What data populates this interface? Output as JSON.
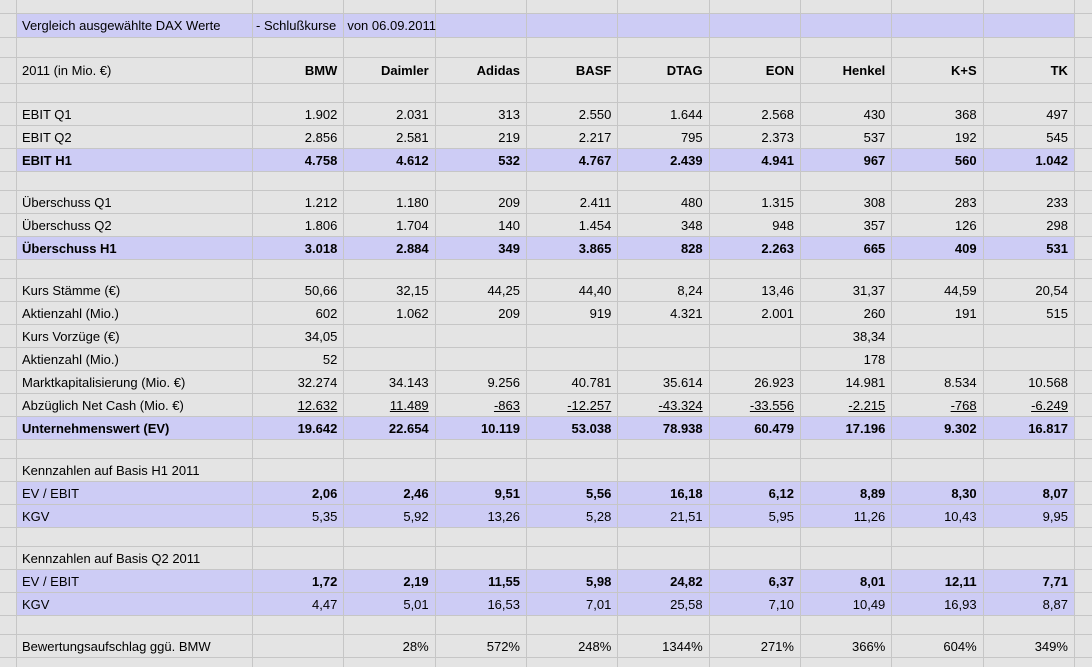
{
  "colors": {
    "sheet_background": "#e4e4e4",
    "gridline": "#c6c6c6",
    "highlight_lavender": "#cdccf5",
    "text": "#000000"
  },
  "title": {
    "part1": "Vergleich ausgewählte DAX Werte",
    "part2": "- Schlußkurse",
    "part3": "von 06.09.2011"
  },
  "table": {
    "corner_label": "2011 (in Mio. €)",
    "columns": [
      "BMW",
      "Daimler",
      "Adidas",
      "BASF",
      "DTAG",
      "EON",
      "Henkel",
      "K+S",
      "TK"
    ],
    "rows": [
      {
        "label": "EBIT Q1",
        "style": "normal",
        "values": [
          "1.902",
          "2.031",
          "313",
          "2.550",
          "1.644",
          "2.568",
          "430",
          "368",
          "497"
        ]
      },
      {
        "label": "EBIT Q2",
        "style": "normal",
        "values": [
          "2.856",
          "2.581",
          "219",
          "2.217",
          "795",
          "2.373",
          "537",
          "192",
          "545"
        ]
      },
      {
        "label": "EBIT H1",
        "style": "total",
        "values": [
          "4.758",
          "4.612",
          "532",
          "4.767",
          "2.439",
          "4.941",
          "967",
          "560",
          "1.042"
        ]
      },
      {
        "label": "",
        "style": "spacer",
        "values": []
      },
      {
        "label": "Überschuss Q1",
        "style": "normal",
        "values": [
          "1.212",
          "1.180",
          "209",
          "2.411",
          "480",
          "1.315",
          "308",
          "283",
          "233"
        ]
      },
      {
        "label": "Überschuss Q2",
        "style": "normal",
        "values": [
          "1.806",
          "1.704",
          "140",
          "1.454",
          "348",
          "948",
          "357",
          "126",
          "298"
        ]
      },
      {
        "label": "Überschuss H1",
        "style": "total",
        "values": [
          "3.018",
          "2.884",
          "349",
          "3.865",
          "828",
          "2.263",
          "665",
          "409",
          "531"
        ]
      },
      {
        "label": "",
        "style": "spacer",
        "values": []
      },
      {
        "label": "Kurs Stämme (€)",
        "style": "normal",
        "values": [
          "50,66",
          "32,15",
          "44,25",
          "44,40",
          "8,24",
          "13,46",
          "31,37",
          "44,59",
          "20,54"
        ]
      },
      {
        "label": "Aktienzahl (Mio.)",
        "style": "normal",
        "values": [
          "602",
          "1.062",
          "209",
          "919",
          "4.321",
          "2.001",
          "260",
          "191",
          "515"
        ]
      },
      {
        "label": "Kurs Vorzüge (€)",
        "style": "normal",
        "values": [
          "34,05",
          "",
          "",
          "",
          "",
          "",
          "38,34",
          "",
          ""
        ]
      },
      {
        "label": "Aktienzahl (Mio.)",
        "style": "normal",
        "values": [
          "52",
          "",
          "",
          "",
          "",
          "",
          "178",
          "",
          ""
        ]
      },
      {
        "label": "Marktkapitalisierung (Mio. €)",
        "style": "normal",
        "values": [
          "32.274",
          "34.143",
          "9.256",
          "40.781",
          "35.614",
          "26.923",
          "14.981",
          "8.534",
          "10.568"
        ]
      },
      {
        "label": "Abzüglich Net Cash (Mio. €)",
        "style": "underline",
        "values": [
          "12.632",
          "11.489",
          "-863",
          "-12.257",
          "-43.324",
          "-33.556",
          "-2.215",
          "-768",
          "-6.249"
        ]
      },
      {
        "label": "Unternehmenswert (EV)",
        "style": "total",
        "values": [
          "19.642",
          "22.654",
          "10.119",
          "53.038",
          "78.938",
          "60.479",
          "17.196",
          "9.302",
          "16.817"
        ]
      },
      {
        "label": "",
        "style": "spacer",
        "values": []
      },
      {
        "label": "Kennzahlen auf Basis H1 2011",
        "style": "section",
        "values": []
      },
      {
        "label": "EV / EBIT",
        "style": "ratio-bold",
        "values": [
          "2,06",
          "2,46",
          "9,51",
          "5,56",
          "16,18",
          "6,12",
          "8,89",
          "8,30",
          "8,07"
        ]
      },
      {
        "label": "KGV",
        "style": "ratio",
        "values": [
          "5,35",
          "5,92",
          "13,26",
          "5,28",
          "21,51",
          "5,95",
          "11,26",
          "10,43",
          "9,95"
        ]
      },
      {
        "label": "",
        "style": "spacer",
        "values": []
      },
      {
        "label": "Kennzahlen auf Basis Q2 2011",
        "style": "section",
        "values": []
      },
      {
        "label": "EV / EBIT",
        "style": "ratio-bold",
        "values": [
          "1,72",
          "2,19",
          "11,55",
          "5,98",
          "24,82",
          "6,37",
          "8,01",
          "12,11",
          "7,71"
        ]
      },
      {
        "label": "KGV",
        "style": "ratio",
        "values": [
          "4,47",
          "5,01",
          "16,53",
          "7,01",
          "25,58",
          "7,10",
          "10,49",
          "16,93",
          "8,87"
        ]
      },
      {
        "label": "",
        "style": "spacer",
        "values": []
      },
      {
        "label": "Bewertungsaufschlag ggü. BMW",
        "style": "normal",
        "values": [
          "",
          "28%",
          "572%",
          "248%",
          "1344%",
          "271%",
          "366%",
          "604%",
          "349%"
        ]
      }
    ]
  }
}
